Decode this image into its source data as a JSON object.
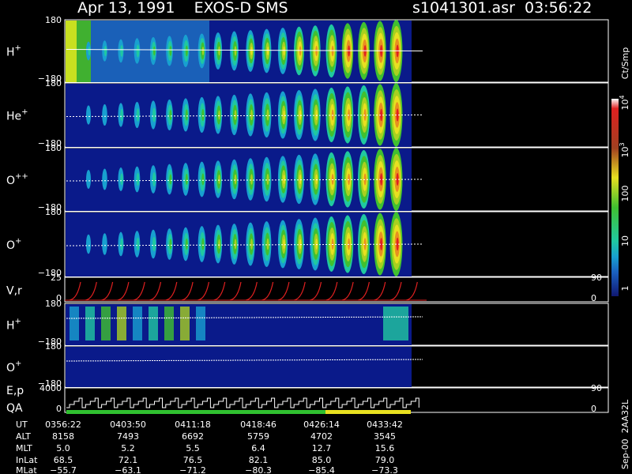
{
  "header": {
    "title": "Apr 13, 1991    EXOS-D SMS",
    "file": "s1041301.asr  03:56:22"
  },
  "panels": [
    {
      "label": "H",
      "sup": "+",
      "top": "180",
      "bottom": "−180"
    },
    {
      "label": "He",
      "sup": "+",
      "top": "180",
      "bottom": "−180"
    },
    {
      "label": "O",
      "sup": "++",
      "top": "180",
      "bottom": "−180"
    },
    {
      "label": "O",
      "sup": "+",
      "top": "180",
      "bottom": "−180"
    },
    {
      "label": "V,r",
      "top": "25",
      "bottom": "0",
      "right_top": "90",
      "right_bottom": "0"
    },
    {
      "label": "H",
      "sup": "+",
      "top": "180",
      "bottom": "−180"
    },
    {
      "label": "O",
      "sup": "+",
      "top": "180",
      "bottom": "−180"
    },
    {
      "label": "E,p",
      "label2": "QA",
      "top": "4000",
      "bottom": "0",
      "right_top": "90",
      "right_bottom": "0"
    }
  ],
  "colorbar": {
    "unit": "Ct/Smp",
    "ticks": [
      {
        "base": "10",
        "sup": "4"
      },
      {
        "base": "10",
        "sup": "3"
      },
      {
        "base": "100"
      },
      {
        "base": "10"
      },
      {
        "base": "1"
      }
    ]
  },
  "table": {
    "rows": [
      {
        "label": "UT",
        "values": [
          "0356:22",
          "0403:50",
          "0411:18",
          "0418:46",
          "0426:14",
          "0433:42"
        ]
      },
      {
        "label": "ALT",
        "values": [
          "8158",
          "7493",
          "6692",
          "5759",
          "4702",
          "3545"
        ]
      },
      {
        "label": "MLT",
        "values": [
          "5.0",
          "5.2",
          "5.5",
          "6.4",
          "12.7",
          "15.6"
        ]
      },
      {
        "label": "InLat",
        "values": [
          "68.5",
          "72.1",
          "76.5",
          "82.1",
          "85.0",
          "79.0"
        ]
      },
      {
        "label": "MLat",
        "values": [
          "−55.7",
          "−63.1",
          "−71.2",
          "−80.3",
          "−85.4",
          "−73.3"
        ]
      }
    ]
  },
  "footer": "Sep-00  2AA32L"
}
